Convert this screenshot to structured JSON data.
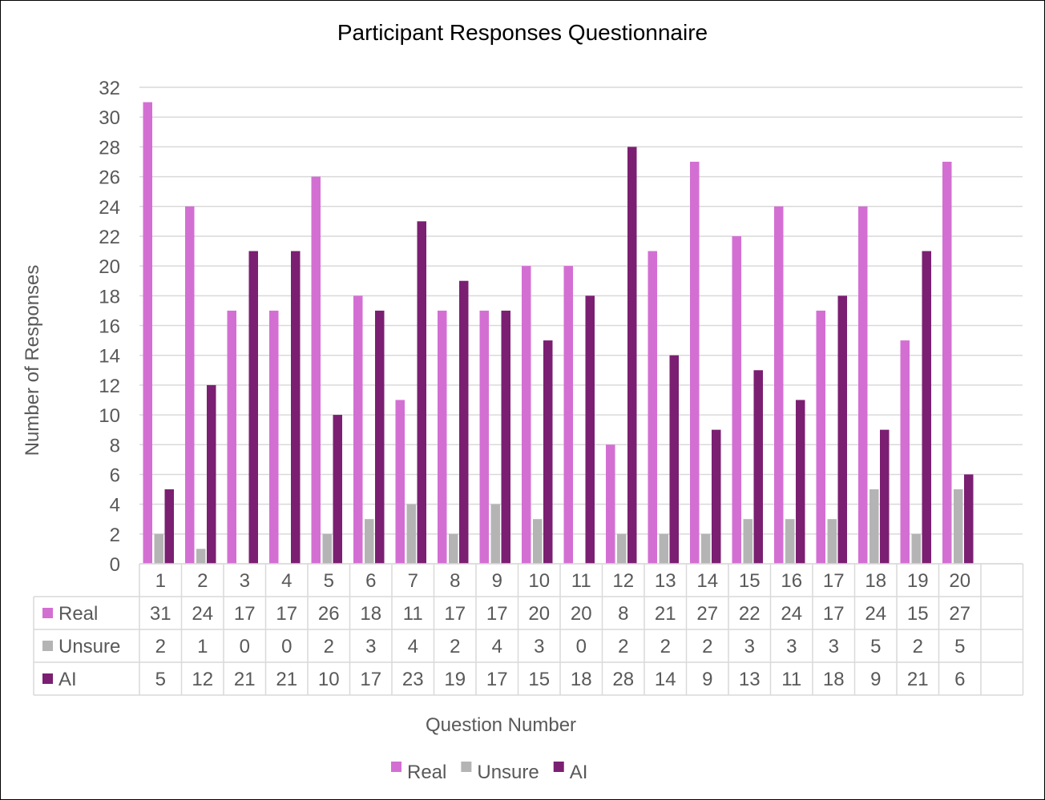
{
  "chart_data": {
    "type": "bar",
    "title": "Participant Responses Questionnaire",
    "xlabel": "Question Number",
    "ylabel": "Number of Responses",
    "ylim": [
      0,
      32
    ],
    "ytick_step": 2,
    "grid": true,
    "legend": "bottom",
    "data_table": true,
    "categories": [
      "1",
      "2",
      "3",
      "4",
      "5",
      "6",
      "7",
      "8",
      "9",
      "10",
      "11",
      "12",
      "13",
      "14",
      "15",
      "16",
      "17",
      "18",
      "19",
      "20"
    ],
    "series": [
      {
        "name": "Real",
        "color": "#d36fd3",
        "values": [
          31,
          24,
          17,
          17,
          26,
          18,
          11,
          17,
          17,
          20,
          20,
          8,
          21,
          27,
          22,
          24,
          17,
          24,
          15,
          27
        ]
      },
      {
        "name": "Unsure",
        "color": "#b4b4b4",
        "values": [
          2,
          1,
          0,
          0,
          2,
          3,
          4,
          2,
          4,
          3,
          0,
          2,
          2,
          2,
          3,
          3,
          3,
          5,
          2,
          5
        ]
      },
      {
        "name": "AI",
        "color": "#7b1f72",
        "values": [
          5,
          12,
          21,
          21,
          10,
          17,
          23,
          19,
          17,
          15,
          18,
          28,
          14,
          9,
          13,
          11,
          18,
          9,
          21,
          6
        ]
      }
    ]
  }
}
